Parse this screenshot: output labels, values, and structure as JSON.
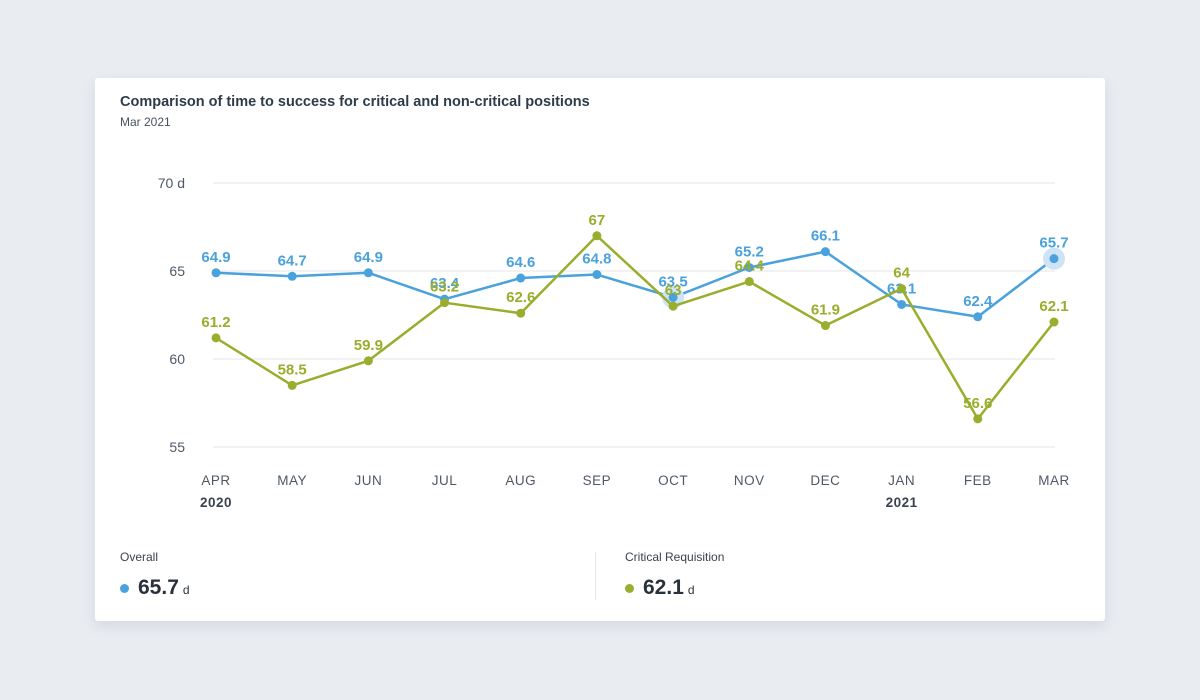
{
  "card": {
    "title": "Comparison of time to success for critical and non-critical positions",
    "subtitle": "Mar 2021"
  },
  "chart_data": {
    "type": "line",
    "x": [
      "APR",
      "MAY",
      "JUN",
      "JUL",
      "AUG",
      "SEP",
      "OCT",
      "NOV",
      "DEC",
      "JAN",
      "FEB",
      "MAR"
    ],
    "x_year_labels": [
      {
        "index": 0,
        "year": "2020"
      },
      {
        "index": 9,
        "year": "2021"
      }
    ],
    "yticks": [
      55,
      60,
      65,
      70
    ],
    "ytick_labels": [
      "55",
      "60",
      "65",
      "70 d"
    ],
    "ylim": [
      55,
      70
    ],
    "unit": "d",
    "grid": "horizontal",
    "legend_position": "bottom",
    "series": [
      {
        "name": "Overall",
        "color": "#4aa2dd",
        "halo_color": "#cee3f5",
        "values": [
          64.9,
          64.7,
          64.9,
          63.4,
          64.6,
          64.8,
          63.5,
          65.2,
          66.1,
          63.1,
          62.4,
          65.7
        ],
        "highlighted_indices": [
          6,
          11
        ]
      },
      {
        "name": "Critical Requisition",
        "color": "#98ae2c",
        "halo_color": "#e5ebc8",
        "values": [
          61.2,
          58.5,
          59.9,
          63.2,
          62.6,
          67,
          63,
          64.4,
          61.9,
          64,
          56.6,
          62.1
        ],
        "highlighted_indices": []
      }
    ]
  },
  "legend": {
    "items": [
      {
        "label": "Overall",
        "value": "65.7",
        "unit": "d",
        "color": "#4aa2dd"
      },
      {
        "label": "Critical Requisition",
        "value": "62.1",
        "unit": "d",
        "color": "#98ae2c"
      }
    ]
  }
}
